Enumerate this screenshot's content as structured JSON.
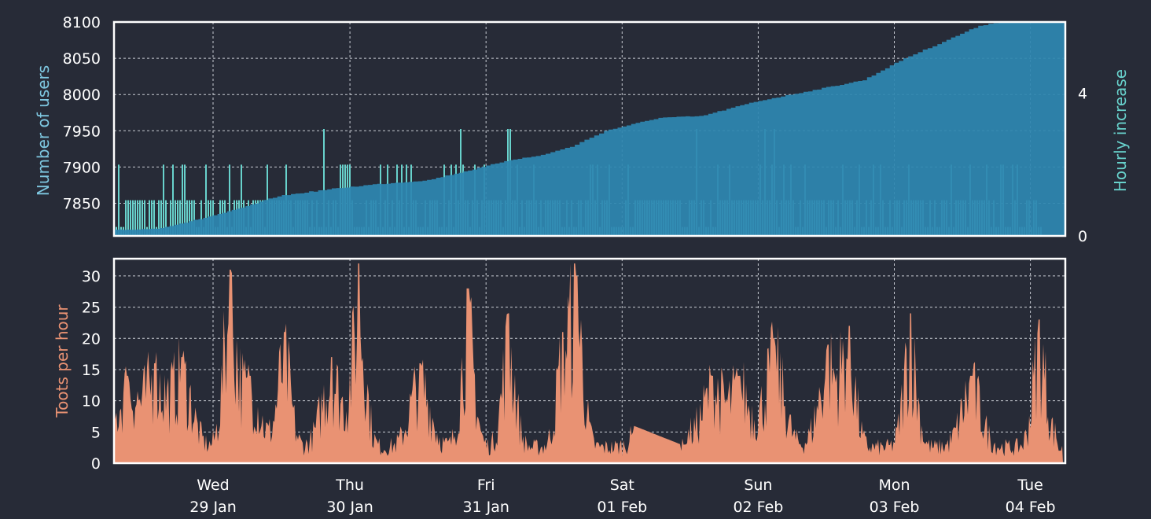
{
  "chart_data": [
    {
      "type": "area",
      "ylabel_left": "Number of users",
      "ylabel_right": "Hourly increase",
      "y_left_ticks": [
        "8100",
        "8050",
        "8000",
        "7950",
        "7900",
        "7850"
      ],
      "y_left_lim": [
        7805,
        8100
      ],
      "y_right_ticks": [
        "4",
        "0"
      ],
      "y_right_lim": [
        0,
        6
      ],
      "grid": true,
      "colors": {
        "users": "#2e86b0",
        "increase": "#68d2cc"
      },
      "series": [
        {
          "name": "Number of users",
          "x_day_offset": [
            0.0,
            0.3,
            0.55,
            0.9,
            1.2,
            1.6,
            1.9,
            2.3,
            2.7,
            2.9,
            3.1,
            3.35,
            3.6,
            4.0,
            4.3,
            4.7,
            5.1,
            5.5,
            5.8,
            6.05,
            6.35,
            6.5
          ],
          "values": [
            7813,
            7815,
            7825,
            7842,
            7860,
            7870,
            7876,
            7882,
            7900,
            7910,
            7915,
            7928,
            7950,
            7968,
            7970,
            7990,
            8005,
            8020,
            8050,
            8070,
            8095,
            8100
          ]
        },
        {
          "name": "Hourly increase",
          "levels": [
            0,
            1,
            2,
            3
          ],
          "note_max": 3
        }
      ]
    },
    {
      "type": "area",
      "ylabel": "Toots per hour",
      "y_ticks": [
        "30",
        "25",
        "20",
        "15",
        "10",
        "5",
        "0"
      ],
      "ylim": [
        0,
        32
      ],
      "grid": true,
      "color": "#e99273",
      "peaks": [
        {
          "day_offset": 0.1,
          "value": 14
        },
        {
          "day_offset": 0.3,
          "value": 16
        },
        {
          "day_offset": 0.5,
          "value": 17
        },
        {
          "day_offset": 0.85,
          "value": 31
        },
        {
          "day_offset": 1.0,
          "value": 14
        },
        {
          "day_offset": 1.25,
          "value": 21
        },
        {
          "day_offset": 1.6,
          "value": 17
        },
        {
          "day_offset": 1.8,
          "value": 32
        },
        {
          "day_offset": 2.25,
          "value": 16
        },
        {
          "day_offset": 2.6,
          "value": 28
        },
        {
          "day_offset": 2.9,
          "value": 24
        },
        {
          "day_offset": 3.3,
          "value": 21
        },
        {
          "day_offset": 3.4,
          "value": 30
        },
        {
          "day_offset": 3.9,
          "value": 6
        },
        {
          "day_offset": 4.2,
          "value": 3
        },
        {
          "day_offset": 4.4,
          "value": 14
        },
        {
          "day_offset": 4.6,
          "value": 14
        },
        {
          "day_offset": 4.85,
          "value": 20
        },
        {
          "day_offset": 5.25,
          "value": 19
        },
        {
          "day_offset": 5.4,
          "value": 22
        },
        {
          "day_offset": 5.85,
          "value": 24
        },
        {
          "day_offset": 6.3,
          "value": 14
        },
        {
          "day_offset": 6.8,
          "value": 23
        },
        {
          "day_offset": 6.95,
          "value": 2
        }
      ]
    }
  ],
  "x_axis": {
    "ticks": [
      {
        "day": "Wed",
        "date": "29 Jan"
      },
      {
        "day": "Thu",
        "date": "30 Jan"
      },
      {
        "day": "Fri",
        "date": "31 Jan"
      },
      {
        "day": "Sat",
        "date": "01 Feb"
      },
      {
        "day": "Sun",
        "date": "02 Feb"
      },
      {
        "day": "Mon",
        "date": "03 Feb"
      },
      {
        "day": "Tue",
        "date": "04 Feb"
      }
    ]
  }
}
